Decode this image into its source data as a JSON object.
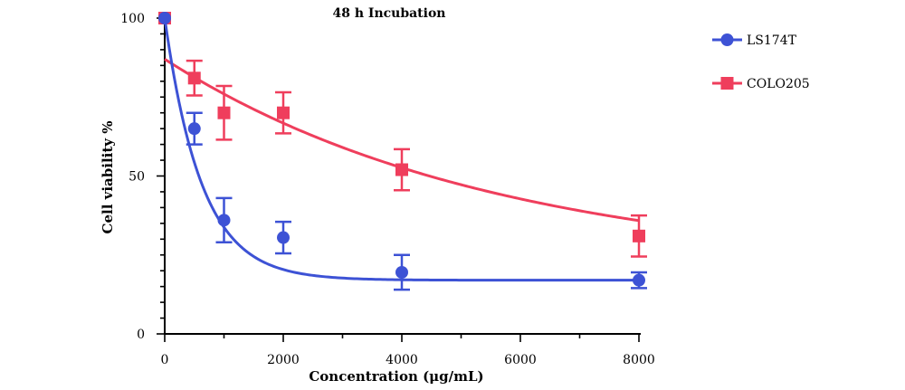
{
  "chart_data": {
    "type": "scatter",
    "title": "48 h Incubation",
    "xlabel": "Concentration (μg/mL)",
    "ylabel": "Cell viability %",
    "xlim": [
      0,
      8000
    ],
    "ylim": [
      0,
      100
    ],
    "x_ticks": [
      "0",
      "2000",
      "4000",
      "6000",
      "8000"
    ],
    "y_ticks": [
      "0",
      "50",
      "100"
    ],
    "grid": false,
    "legend_position": "top-right",
    "series": [
      {
        "name": "LS174T",
        "color": "#3d52d5",
        "marker": "circle",
        "points": [
          {
            "x": 0,
            "y": 100,
            "err": 0
          },
          {
            "x": 500,
            "y": 65,
            "err": 5
          },
          {
            "x": 1000,
            "y": 36,
            "err": 7
          },
          {
            "x": 2000,
            "y": 30.5,
            "err": 5
          },
          {
            "x": 4000,
            "y": 19.5,
            "err": 5.5
          },
          {
            "x": 8000,
            "y": 17,
            "err": 2.5
          }
        ],
        "fit": {
          "model": "exponential_decay",
          "plateau": 17,
          "top": 100,
          "rate": 0.0016
        }
      },
      {
        "name": "COLO205",
        "color": "#ef3e5c",
        "marker": "square",
        "points": [
          {
            "x": 0,
            "y": 100,
            "err": 0
          },
          {
            "x": 500,
            "y": 81,
            "err": 5.5
          },
          {
            "x": 1000,
            "y": 70,
            "err": 8.5
          },
          {
            "x": 2000,
            "y": 70,
            "err": 6.5
          },
          {
            "x": 4000,
            "y": 52,
            "err": 6.5
          },
          {
            "x": 8000,
            "y": 31,
            "err": 6.5
          }
        ],
        "fit": {
          "model": "exponential_decay",
          "plateau": 20,
          "top": 87,
          "rate": 0.00018
        }
      }
    ]
  }
}
